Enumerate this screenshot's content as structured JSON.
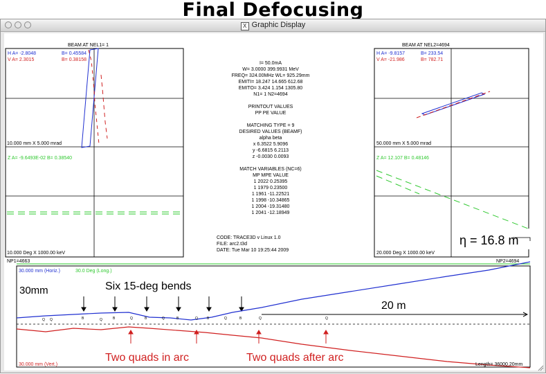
{
  "slide": {
    "title": "Final Defocusing"
  },
  "window": {
    "title": "Graphic Display"
  },
  "left_panel": {
    "header": "BEAM AT NEL1=  1",
    "h_alpha": "H A= -2.8048",
    "h_beta": "B= 0.45584",
    "v_alpha": "V A= 2.3015",
    "v_beta": "B= 0.38158",
    "scale_top": "10.000 mm  X     5.000 mrad",
    "z_line": "Z A= -9.6493E-02  B= 0.38540",
    "scale_bottom": "10.000 Deg  X  1000.00 keV"
  },
  "right_panel": {
    "header": "BEAM AT NEL2=4694",
    "h_alpha": "H A= -9.8157",
    "h_beta": "B= 233.54",
    "v_alpha": "V A= -21.986",
    "v_beta": "B= 782.71",
    "scale_top": "50.000 mm  X     5.000 mrad",
    "z_line": "Z A= 12.107    B= 0.48146",
    "scale_bottom": "20.000 Deg  X  1000.00 keV"
  },
  "center": {
    "beam_lines": [
      "I=   50.0mA",
      "W=  3.0000  399.9931 MeV",
      "FREQ= 324.00MHz   WL=   925.29mm",
      "EMITI= 18.247   14.665   612.68",
      "EMITO=  3.424    1.154  1305.80",
      "N1=  1   N2=4694"
    ],
    "printout_title": "PRINTOUT VALUES",
    "printout_cols": "PP  PE      VALUE",
    "matching_type": "MATCHING TYPE =  9",
    "desired_title": "DESIRED VALUES (BEAMF)",
    "desired_cols": "alpha     beta",
    "desired_rows": [
      "x    6.3522    5.9096",
      "y   -6.6815    6.2113",
      "z   -0.0030    0.0093"
    ],
    "match_title": "MATCH VARIABLES (NC=6)",
    "match_cols": "MP  MPE        VALUE",
    "match_rows": [
      "1 2022     0.25395",
      "1 1979     0.23500",
      "1 1961   -11.22521",
      "1 1998   -10.34865",
      "1 2004   -19.31480",
      "1 2041   -12.18949"
    ],
    "code_line": "CODE: TRACE3D v Linux 1.0",
    "file_line": "FILE: arc2.t3d",
    "date_line": "DATE: Tue Mar 10 19:25:44 2009"
  },
  "eta_annotation": "η = 16.8 m",
  "beamline": {
    "np1": "NP1=4663",
    "np2": "NP2=4694",
    "horiz_scale": "30.000 mm (Horiz.)",
    "long_scale": "30.0 Deg (Long.)",
    "vert_scale": "30.000 mm (Vert.)",
    "length": "Length= 36000.20mm",
    "label_30mm": "30mm",
    "label_bends": "Six 15-deg bends",
    "label_20m": "20 m",
    "label_quads_arc": "Two quads in arc",
    "label_quads_after": "Two quads after arc"
  },
  "colors": {
    "horizontal": "#1f2fd0",
    "vertical": "#d01f1f",
    "longitudinal": "#2ec82e",
    "grid": "#000000"
  },
  "icons": [
    "close-icon",
    "minimize-icon",
    "zoom-icon",
    "x11-icon",
    "resize-grip-icon"
  ]
}
